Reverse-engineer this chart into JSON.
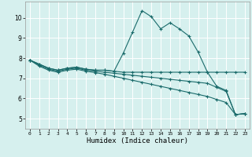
{
  "title": "",
  "xlabel": "Humidex (Indice chaleur)",
  "ylabel": "",
  "xlim": [
    -0.5,
    23.5
  ],
  "ylim": [
    4.5,
    10.8
  ],
  "yticks": [
    5,
    6,
    7,
    8,
    9,
    10
  ],
  "xticks": [
    0,
    1,
    2,
    3,
    4,
    5,
    6,
    7,
    8,
    9,
    10,
    11,
    12,
    13,
    14,
    15,
    16,
    17,
    18,
    19,
    20,
    21,
    22,
    23
  ],
  "bg_color": "#d6f0ee",
  "grid_color": "#ffffff",
  "line_color": "#1a6b6b",
  "line1_x": [
    0,
    1,
    2,
    3,
    4,
    5,
    6,
    7,
    8,
    9,
    10,
    11,
    12,
    13,
    14,
    15,
    16,
    17,
    18,
    19,
    20,
    21,
    22,
    23
  ],
  "line1_y": [
    7.9,
    7.7,
    7.5,
    7.4,
    7.5,
    7.55,
    7.45,
    7.4,
    7.4,
    7.35,
    8.25,
    9.3,
    10.35,
    10.05,
    9.45,
    9.75,
    9.45,
    9.1,
    8.3,
    7.3,
    6.6,
    6.4,
    5.2,
    5.25
  ],
  "line2_x": [
    0,
    1,
    2,
    3,
    4,
    5,
    6,
    7,
    8,
    9,
    10,
    11,
    12,
    13,
    14,
    15,
    16,
    17,
    18,
    19,
    20,
    21,
    22,
    23
  ],
  "line2_y": [
    7.9,
    7.7,
    7.5,
    7.4,
    7.5,
    7.55,
    7.45,
    7.4,
    7.4,
    7.35,
    7.3,
    7.3,
    7.3,
    7.3,
    7.3,
    7.3,
    7.3,
    7.3,
    7.3,
    7.3,
    7.3,
    7.3,
    7.3,
    7.3
  ],
  "line3_x": [
    0,
    1,
    2,
    3,
    4,
    5,
    6,
    7,
    8,
    9,
    10,
    11,
    12,
    13,
    14,
    15,
    16,
    17,
    18,
    19,
    20,
    21,
    22,
    23
  ],
  "line3_y": [
    7.9,
    7.65,
    7.45,
    7.35,
    7.45,
    7.5,
    7.4,
    7.35,
    7.3,
    7.25,
    7.2,
    7.15,
    7.1,
    7.05,
    7.0,
    6.95,
    6.9,
    6.85,
    6.8,
    6.75,
    6.55,
    6.35,
    5.2,
    5.25
  ],
  "line4_x": [
    0,
    1,
    2,
    3,
    4,
    5,
    6,
    7,
    8,
    9,
    10,
    11,
    12,
    13,
    14,
    15,
    16,
    17,
    18,
    19,
    20,
    21,
    22,
    23
  ],
  "line4_y": [
    7.9,
    7.6,
    7.4,
    7.3,
    7.4,
    7.45,
    7.35,
    7.28,
    7.2,
    7.1,
    7.0,
    6.9,
    6.8,
    6.7,
    6.6,
    6.5,
    6.4,
    6.3,
    6.2,
    6.1,
    5.95,
    5.8,
    5.2,
    5.25
  ],
  "marker": "+",
  "markersize": 3,
  "linewidth": 0.8
}
